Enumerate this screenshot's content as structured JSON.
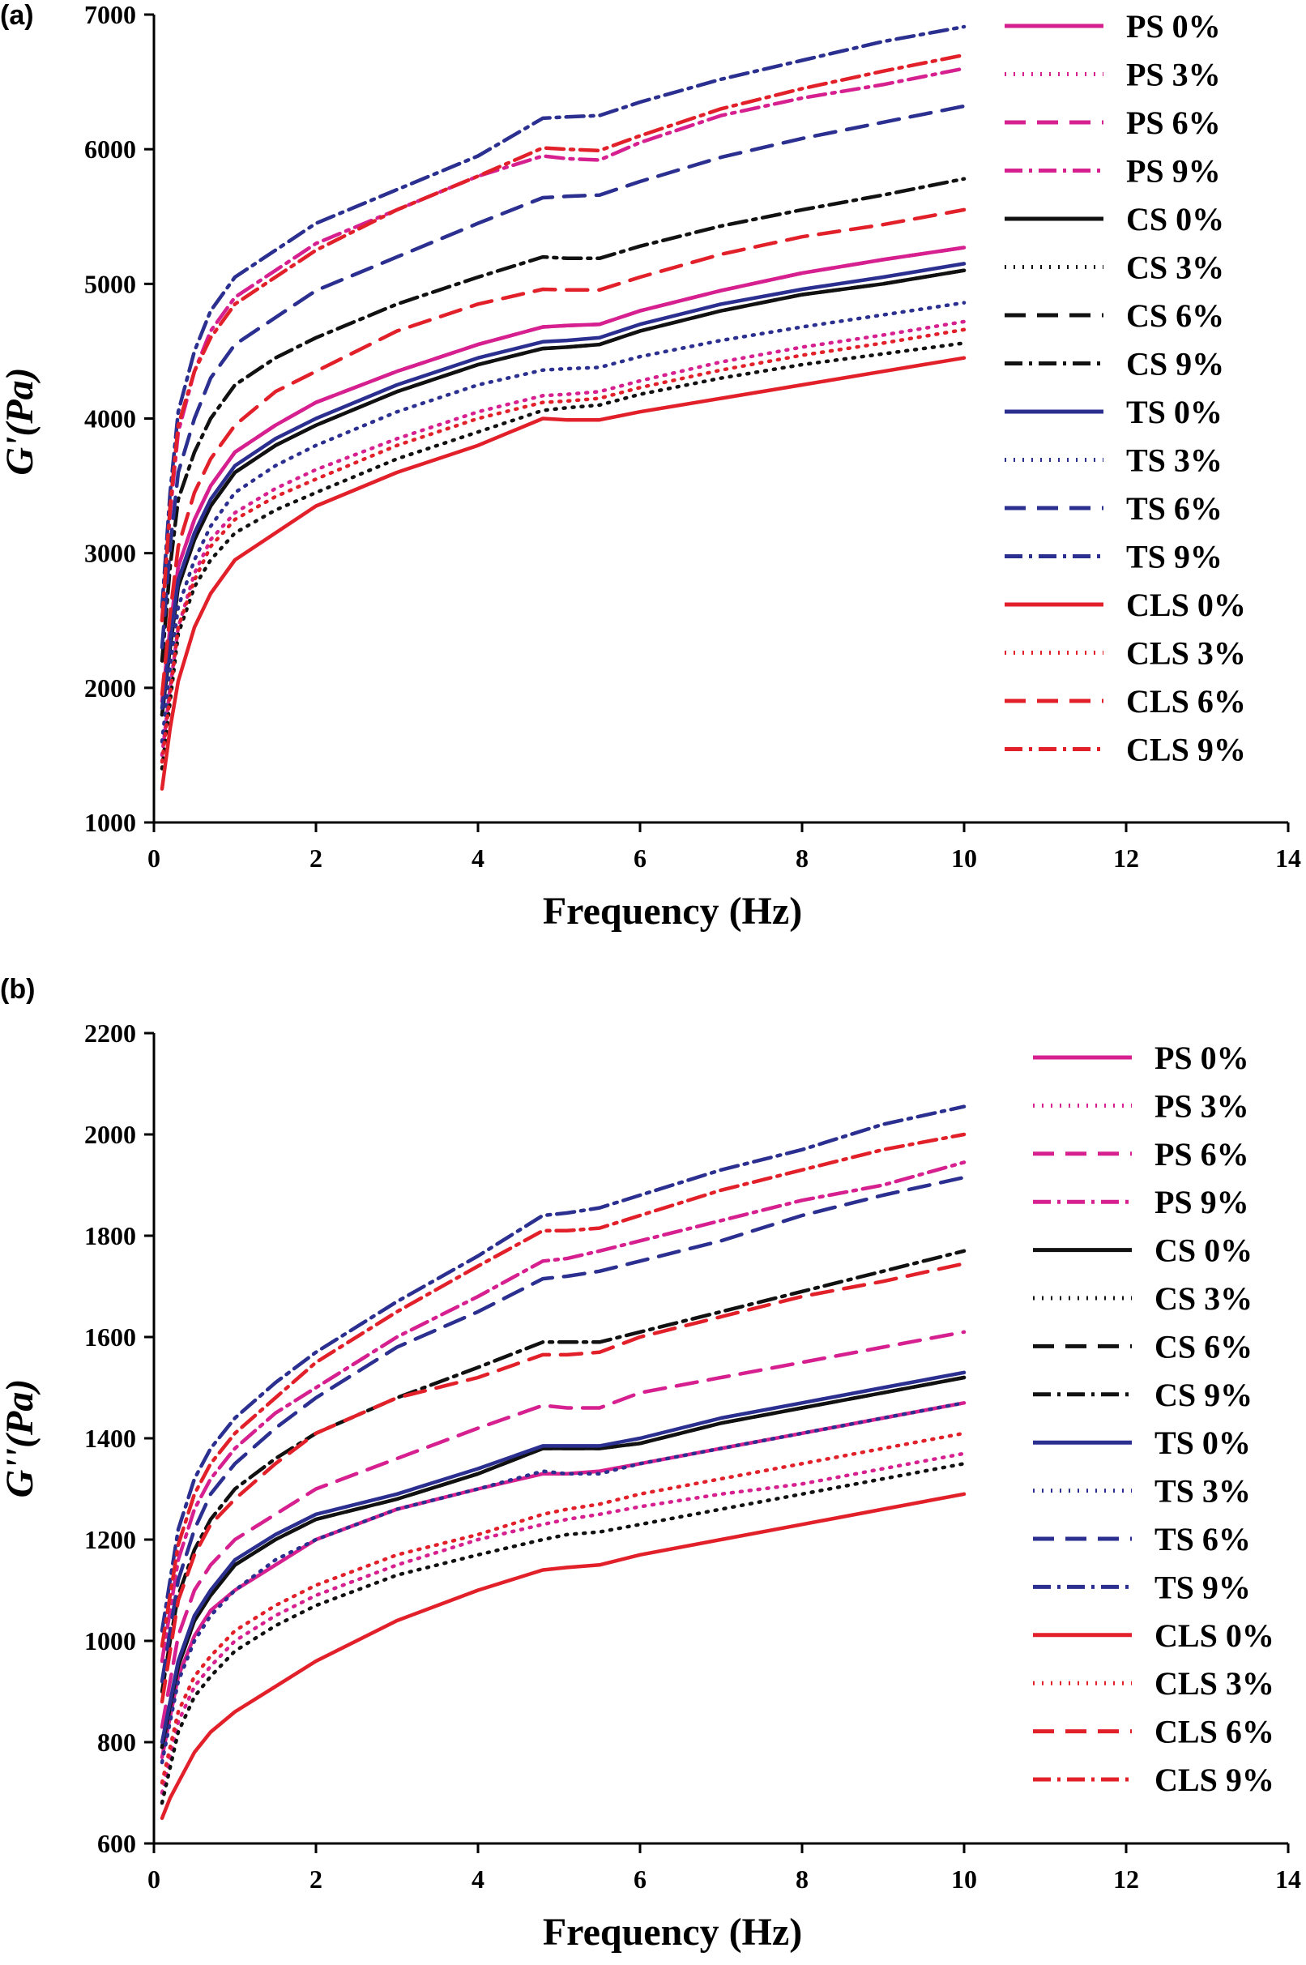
{
  "colors": {
    "PS": "#d6208f",
    "CS": "#111111",
    "TS": "#2b2f8f",
    "CLS": "#e2202a"
  },
  "styles": {
    "0%": "solid",
    "3%": "dotted",
    "6%": "dashed",
    "9%": "dashdot"
  },
  "chart_data": [
    {
      "panel_label": "(a)",
      "type": "line",
      "xlabel": "Frequency (Hz)",
      "ylabel": "G'(Pa)",
      "xlim": [
        0,
        14
      ],
      "ylim": [
        1000,
        7000
      ],
      "xticks": [
        0,
        2,
        4,
        6,
        8,
        10,
        12,
        14
      ],
      "yticks": [
        1000,
        2000,
        3000,
        4000,
        5000,
        6000,
        7000
      ],
      "x": [
        0.1,
        0.2,
        0.3,
        0.5,
        0.7,
        1,
        1.5,
        2,
        3,
        4,
        4.8,
        5.1,
        5.5,
        6,
        7,
        8,
        9,
        10
      ],
      "series": [
        {
          "name": "PS 0%",
          "group": "PS",
          "style": "solid",
          "values": [
            1900,
            2450,
            2900,
            3250,
            3500,
            3750,
            3950,
            4120,
            4350,
            4550,
            4680,
            4690,
            4700,
            4800,
            4950,
            5080,
            5180,
            5270
          ]
        },
        {
          "name": "PS 3%",
          "group": "PS",
          "style": "dotted",
          "values": [
            1500,
            2000,
            2450,
            2850,
            3100,
            3300,
            3480,
            3620,
            3850,
            4050,
            4170,
            4180,
            4200,
            4280,
            4420,
            4530,
            4620,
            4720
          ]
        },
        {
          "name": "PS 6%",
          "group": "PS",
          "style": "dashed",
          "values": [
            1900,
            2450,
            2900,
            3250,
            3500,
            3750,
            3950,
            4120,
            4350,
            4550,
            4680,
            4690,
            4700,
            4800,
            4950,
            5080,
            5180,
            5270
          ]
        },
        {
          "name": "PS 9%",
          "group": "PS",
          "style": "dashdot",
          "values": [
            2500,
            3300,
            3900,
            4350,
            4650,
            4900,
            5100,
            5300,
            5550,
            5800,
            5950,
            5930,
            5920,
            6050,
            6250,
            6380,
            6480,
            6600
          ]
        },
        {
          "name": "CS 0%",
          "group": "CS",
          "style": "solid",
          "values": [
            1800,
            2300,
            2750,
            3100,
            3350,
            3600,
            3800,
            3950,
            4200,
            4400,
            4520,
            4530,
            4550,
            4650,
            4800,
            4920,
            5000,
            5100
          ]
        },
        {
          "name": "CS 3%",
          "group": "CS",
          "style": "dotted",
          "values": [
            1400,
            1900,
            2400,
            2750,
            2950,
            3150,
            3320,
            3450,
            3700,
            3900,
            4060,
            4080,
            4100,
            4180,
            4300,
            4400,
            4480,
            4560
          ]
        },
        {
          "name": "CS 6%",
          "group": "CS",
          "style": "dashed",
          "values": [
            1800,
            2300,
            2750,
            3100,
            3350,
            3600,
            3800,
            3950,
            4200,
            4400,
            4520,
            4530,
            4550,
            4650,
            4800,
            4920,
            5000,
            5100
          ]
        },
        {
          "name": "CS 9%",
          "group": "CS",
          "style": "dashdot",
          "values": [
            2200,
            2900,
            3400,
            3750,
            4000,
            4250,
            4450,
            4600,
            4850,
            5050,
            5200,
            5190,
            5190,
            5280,
            5430,
            5550,
            5660,
            5780
          ]
        },
        {
          "name": "TS 0%",
          "group": "TS",
          "style": "solid",
          "values": [
            1850,
            2350,
            2800,
            3150,
            3400,
            3650,
            3850,
            4000,
            4250,
            4450,
            4570,
            4580,
            4600,
            4700,
            4850,
            4960,
            5050,
            5150
          ]
        },
        {
          "name": "TS 3%",
          "group": "TS",
          "style": "dotted",
          "values": [
            1600,
            2150,
            2600,
            2950,
            3200,
            3450,
            3650,
            3800,
            4050,
            4250,
            4360,
            4370,
            4380,
            4460,
            4580,
            4680,
            4770,
            4860
          ]
        },
        {
          "name": "TS 6%",
          "group": "TS",
          "style": "dashed",
          "values": [
            2300,
            3050,
            3600,
            4000,
            4300,
            4550,
            4750,
            4950,
            5200,
            5450,
            5640,
            5650,
            5660,
            5760,
            5940,
            6080,
            6200,
            6320
          ]
        },
        {
          "name": "TS 9%",
          "group": "TS",
          "style": "dashdot",
          "values": [
            2600,
            3450,
            4050,
            4500,
            4800,
            5050,
            5250,
            5450,
            5700,
            5950,
            6230,
            6240,
            6250,
            6350,
            6520,
            6660,
            6800,
            6910
          ]
        },
        {
          "name": "CLS 0%",
          "group": "CLS",
          "style": "solid",
          "values": [
            1250,
            1700,
            2050,
            2450,
            2700,
            2950,
            3150,
            3350,
            3600,
            3800,
            4000,
            3990,
            3990,
            4050,
            4150,
            4250,
            4350,
            4450
          ]
        },
        {
          "name": "CLS 3%",
          "group": "CLS",
          "style": "dotted",
          "values": [
            1450,
            1950,
            2450,
            2800,
            3050,
            3250,
            3420,
            3550,
            3800,
            4000,
            4120,
            4130,
            4150,
            4230,
            4360,
            4470,
            4560,
            4660
          ]
        },
        {
          "name": "CLS 6%",
          "group": "CLS",
          "style": "dashed",
          "values": [
            1950,
            2550,
            3050,
            3450,
            3700,
            3950,
            4200,
            4350,
            4650,
            4850,
            4960,
            4955,
            4955,
            5050,
            5220,
            5350,
            5440,
            5550
          ]
        },
        {
          "name": "CLS 9%",
          "group": "CLS",
          "style": "dashdot",
          "values": [
            2500,
            3350,
            3950,
            4350,
            4600,
            4850,
            5050,
            5250,
            5550,
            5800,
            6010,
            6000,
            5990,
            6100,
            6300,
            6450,
            6580,
            6700
          ]
        }
      ]
    },
    {
      "panel_label": "(b)",
      "type": "line",
      "xlabel": "Frequency (Hz)",
      "ylabel": "G''(Pa)",
      "xlim": [
        0,
        14
      ],
      "ylim": [
        600,
        2200
      ],
      "xticks": [
        0,
        2,
        4,
        6,
        8,
        10,
        12,
        14
      ],
      "yticks": [
        600,
        800,
        1000,
        1200,
        1400,
        1600,
        1800,
        2000,
        2200
      ],
      "x": [
        0.1,
        0.2,
        0.3,
        0.5,
        0.7,
        1,
        1.5,
        2,
        3,
        4,
        4.8,
        5.1,
        5.5,
        6,
        7,
        8,
        9,
        10
      ],
      "series": [
        {
          "name": "PS 0%",
          "group": "PS",
          "style": "solid",
          "values": [
            770,
            850,
            930,
            1010,
            1060,
            1100,
            1150,
            1200,
            1260,
            1300,
            1330,
            1330,
            1335,
            1350,
            1380,
            1410,
            1440,
            1470
          ]
        },
        {
          "name": "PS 3%",
          "group": "PS",
          "style": "dotted",
          "values": [
            700,
            770,
            840,
            910,
            950,
            1000,
            1050,
            1090,
            1150,
            1200,
            1230,
            1240,
            1250,
            1265,
            1290,
            1310,
            1340,
            1370
          ]
        },
        {
          "name": "PS 6%",
          "group": "PS",
          "style": "dashed",
          "values": [
            830,
            920,
            1010,
            1100,
            1150,
            1200,
            1250,
            1300,
            1360,
            1420,
            1465,
            1460,
            1460,
            1490,
            1520,
            1550,
            1580,
            1610
          ]
        },
        {
          "name": "PS 9%",
          "group": "PS",
          "style": "dashdot",
          "values": [
            960,
            1060,
            1160,
            1260,
            1320,
            1380,
            1450,
            1500,
            1600,
            1680,
            1750,
            1755,
            1770,
            1790,
            1830,
            1870,
            1900,
            1945
          ]
        },
        {
          "name": "CS 0%",
          "group": "CS",
          "style": "solid",
          "values": [
            790,
            870,
            950,
            1040,
            1090,
            1150,
            1200,
            1240,
            1280,
            1330,
            1380,
            1380,
            1380,
            1390,
            1430,
            1460,
            1490,
            1520
          ]
        },
        {
          "name": "CS 3%",
          "group": "CS",
          "style": "dotted",
          "values": [
            680,
            750,
            820,
            890,
            930,
            980,
            1030,
            1070,
            1130,
            1170,
            1200,
            1210,
            1215,
            1230,
            1260,
            1290,
            1320,
            1350
          ]
        },
        {
          "name": "CS 6%",
          "group": "CS",
          "style": "dashed",
          "values": [
            790,
            870,
            950,
            1040,
            1090,
            1150,
            1200,
            1240,
            1280,
            1330,
            1380,
            1380,
            1380,
            1390,
            1430,
            1460,
            1490,
            1520
          ]
        },
        {
          "name": "CS 9%",
          "group": "CS",
          "style": "dashdot",
          "values": [
            900,
            1000,
            1090,
            1180,
            1240,
            1300,
            1360,
            1410,
            1480,
            1540,
            1590,
            1590,
            1590,
            1610,
            1650,
            1690,
            1730,
            1770
          ]
        },
        {
          "name": "TS 0%",
          "group": "TS",
          "style": "solid",
          "values": [
            800,
            880,
            960,
            1050,
            1100,
            1160,
            1210,
            1250,
            1290,
            1340,
            1385,
            1385,
            1385,
            1400,
            1440,
            1470,
            1500,
            1530
          ]
        },
        {
          "name": "TS 3%",
          "group": "TS",
          "style": "dotted",
          "values": [
            760,
            840,
            920,
            1000,
            1050,
            1100,
            1160,
            1200,
            1260,
            1300,
            1335,
            1330,
            1330,
            1350,
            1380,
            1410,
            1440,
            1470
          ]
        },
        {
          "name": "TS 6%",
          "group": "TS",
          "style": "dashed",
          "values": [
            920,
            1020,
            1120,
            1220,
            1290,
            1350,
            1420,
            1480,
            1580,
            1650,
            1715,
            1720,
            1730,
            1750,
            1790,
            1840,
            1880,
            1915
          ]
        },
        {
          "name": "TS 9%",
          "group": "TS",
          "style": "dashdot",
          "values": [
            1020,
            1120,
            1220,
            1320,
            1380,
            1440,
            1510,
            1570,
            1670,
            1760,
            1840,
            1845,
            1855,
            1880,
            1930,
            1970,
            2020,
            2055
          ]
        },
        {
          "name": "CLS 0%",
          "group": "CLS",
          "style": "solid",
          "values": [
            650,
            690,
            720,
            780,
            820,
            860,
            910,
            960,
            1040,
            1100,
            1140,
            1145,
            1150,
            1170,
            1200,
            1230,
            1260,
            1290
          ]
        },
        {
          "name": "CLS 3%",
          "group": "CLS",
          "style": "dotted",
          "values": [
            720,
            790,
            860,
            930,
            970,
            1020,
            1070,
            1110,
            1170,
            1210,
            1250,
            1260,
            1270,
            1290,
            1320,
            1350,
            1380,
            1410
          ]
        },
        {
          "name": "CLS 6%",
          "group": "CLS",
          "style": "dashed",
          "values": [
            880,
            980,
            1080,
            1170,
            1230,
            1280,
            1350,
            1410,
            1480,
            1520,
            1565,
            1565,
            1570,
            1600,
            1640,
            1680,
            1710,
            1745
          ]
        },
        {
          "name": "CLS 9%",
          "group": "CLS",
          "style": "dashdot",
          "values": [
            990,
            1090,
            1190,
            1290,
            1350,
            1410,
            1480,
            1550,
            1650,
            1740,
            1810,
            1810,
            1815,
            1840,
            1890,
            1930,
            1970,
            2000
          ]
        }
      ]
    }
  ]
}
